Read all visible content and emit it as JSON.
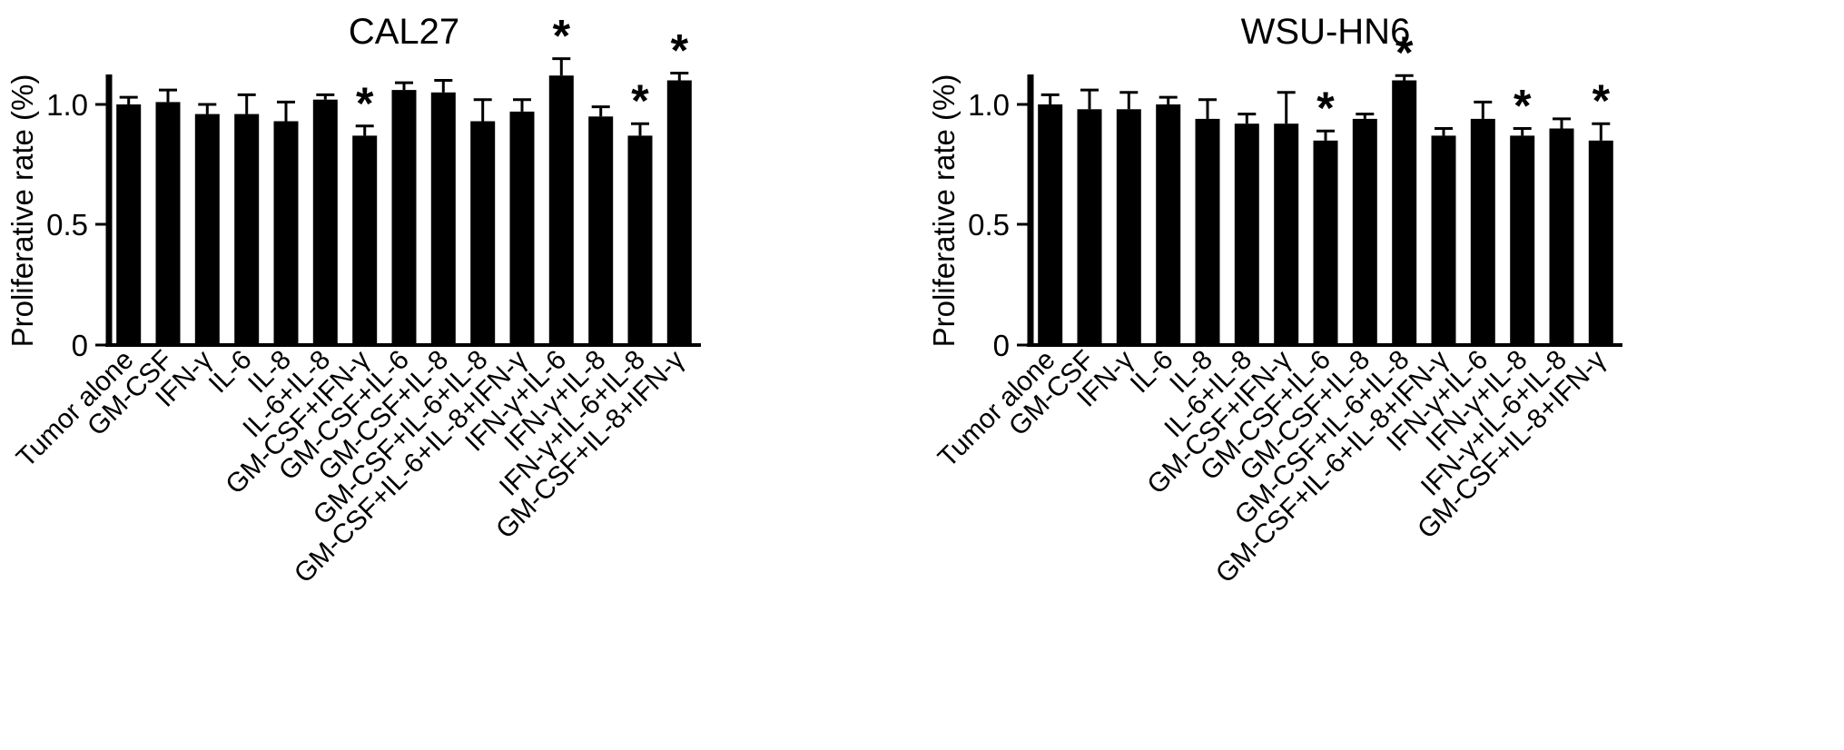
{
  "figure": {
    "background": "#ffffff",
    "bar_color": "#000000",
    "axis_color": "#000000",
    "significance_marker": "*"
  },
  "chart_data": [
    {
      "type": "bar",
      "title": "CAL27",
      "xlabel": "",
      "ylabel": "Proliferative rate (%)",
      "ylim": [
        0,
        1.2
      ],
      "yticks": [
        0,
        0.5,
        1.0
      ],
      "ytick_labels": [
        "0",
        "0.5",
        "1.0"
      ],
      "grid": false,
      "legend": "none",
      "categories": [
        "Tumor alone",
        "GM-CSF",
        "IFN-γ",
        "IL-6",
        "IL-8",
        "IL-6+IL-8",
        "GM-CSF+IFN-γ",
        "GM-CSF+IL-6",
        "GM-CSF+IL-8",
        "GM-CSF+IL-6+IL-8",
        "GM-CSF+IL-6+IL-8+IFN-γ",
        "IFN-γ+IL-6",
        "IFN-γ+IL-8",
        "IFN-γ+IL-6+IL-8",
        "GM-CSF+IL-8+IFN-γ"
      ],
      "values": [
        1.0,
        1.01,
        0.96,
        0.96,
        0.93,
        1.02,
        0.87,
        1.06,
        1.05,
        0.93,
        0.97,
        1.12,
        0.95,
        0.87,
        1.1
      ],
      "errors": [
        0.03,
        0.05,
        0.04,
        0.08,
        0.08,
        0.02,
        0.04,
        0.03,
        0.05,
        0.09,
        0.05,
        0.07,
        0.04,
        0.05,
        0.03
      ],
      "significant": [
        false,
        false,
        false,
        false,
        false,
        false,
        true,
        false,
        false,
        false,
        false,
        true,
        false,
        true,
        true
      ]
    },
    {
      "type": "bar",
      "title": "WSU-HN6",
      "xlabel": "",
      "ylabel": "Proliferative rate (%)",
      "ylim": [
        0,
        1.2
      ],
      "yticks": [
        0,
        0.5,
        1.0
      ],
      "ytick_labels": [
        "0",
        "0.5",
        "1.0"
      ],
      "grid": false,
      "legend": "none",
      "categories": [
        "Tumor alone",
        "GM-CSF",
        "IFN-γ",
        "IL-6",
        "IL-8",
        "IL-6+IL-8",
        "GM-CSF+IFN-γ",
        "GM-CSF+IL-6",
        "GM-CSF+IL-8",
        "GM-CSF+IL-6+IL-8",
        "GM-CSF+IL-6+IL-8+IFN-γ",
        "IFN-γ+IL-6",
        "IFN-γ+IL-8",
        "IFN-γ+IL-6+IL-8",
        "GM-CSF+IL-8+IFN-γ"
      ],
      "values": [
        1.0,
        0.98,
        0.98,
        1.0,
        0.94,
        0.92,
        0.92,
        0.85,
        0.94,
        1.1,
        0.87,
        0.94,
        0.87,
        0.9,
        0.85
      ],
      "errors": [
        0.04,
        0.08,
        0.07,
        0.03,
        0.08,
        0.04,
        0.13,
        0.04,
        0.02,
        0.02,
        0.03,
        0.07,
        0.03,
        0.04,
        0.07
      ],
      "significant": [
        false,
        false,
        false,
        false,
        false,
        false,
        false,
        true,
        false,
        true,
        false,
        false,
        true,
        false,
        true
      ]
    }
  ]
}
